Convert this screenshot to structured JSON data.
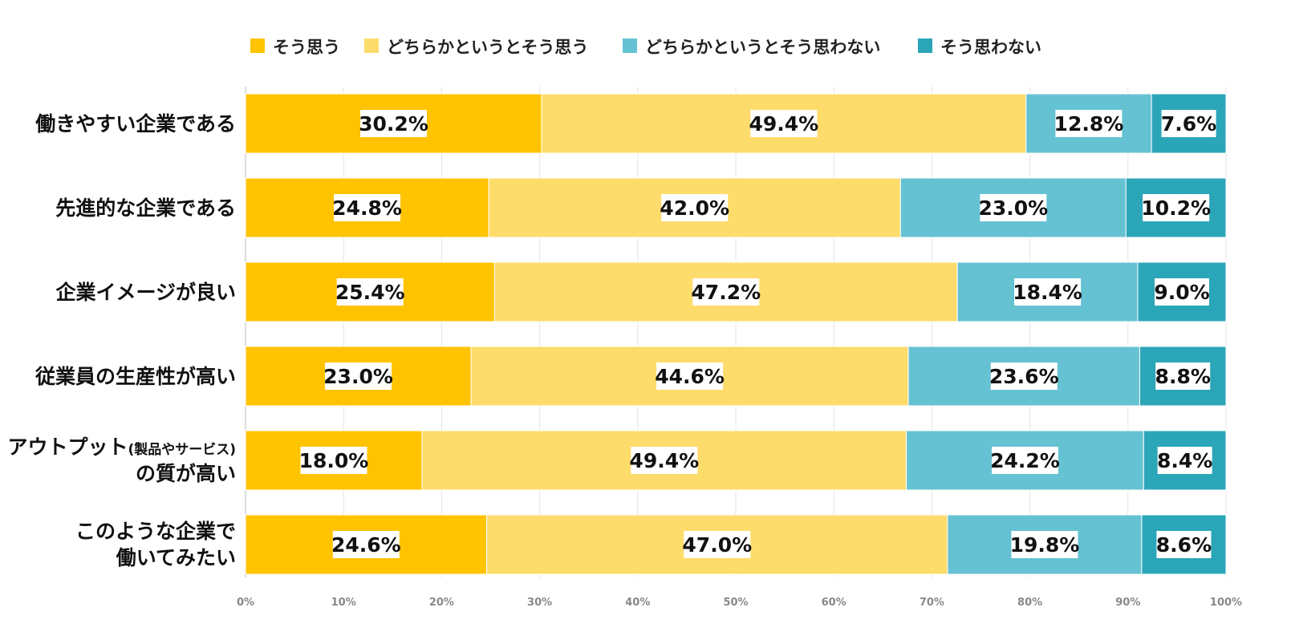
{
  "chart_data": {
    "type": "stacked-bar-horizontal",
    "title": "",
    "xlabel": "",
    "ylabel": "",
    "xlim": [
      0,
      100
    ],
    "legend_position": "top",
    "x_ticks": [
      "0%",
      "10%",
      "20%",
      "30%",
      "40%",
      "50%",
      "60%",
      "70%",
      "80%",
      "90%",
      "100%"
    ],
    "categories": [
      {
        "label": "働きやすい企業である"
      },
      {
        "label": "先進的な企業である"
      },
      {
        "label": "企業イメージが良い"
      },
      {
        "label": "従業員の生産性が高い"
      },
      {
        "label_main": "アウトプット",
        "label_paren": "(製品やサービス)",
        "label_line2": "の質が高い"
      },
      {
        "label": "このような企業で",
        "label_line2": "働いてみたい"
      }
    ],
    "series": [
      {
        "name": "そう思う",
        "color": "#FFC300",
        "values": [
          30.2,
          24.8,
          25.4,
          23.0,
          18.0,
          24.6
        ],
        "labels": [
          "30.2%",
          "24.8%",
          "25.4%",
          "23.0%",
          "18.0%",
          "24.6%"
        ]
      },
      {
        "name": "どちらかというとそう思う",
        "color": "#FDDC6C",
        "values": [
          49.4,
          42.0,
          47.2,
          44.6,
          49.4,
          47.0
        ],
        "labels": [
          "49.4%",
          "42.0%",
          "47.2%",
          "44.6%",
          "49.4%",
          "47.0%"
        ]
      },
      {
        "name": "どちらかというとそう思わない",
        "color": "#65C2D2",
        "values": [
          12.8,
          23.0,
          18.4,
          23.6,
          24.2,
          19.8
        ],
        "labels": [
          "12.8%",
          "23.0%",
          "18.4%",
          "23.6%",
          "24.2%",
          "19.8%"
        ]
      },
      {
        "name": "そう思わない",
        "color": "#2BA6B8",
        "values": [
          7.6,
          10.2,
          9.0,
          8.8,
          8.4,
          8.6
        ],
        "labels": [
          "7.6%",
          "10.2%",
          "9.0%",
          "8.8%",
          "8.4%",
          "8.6%"
        ]
      }
    ]
  }
}
